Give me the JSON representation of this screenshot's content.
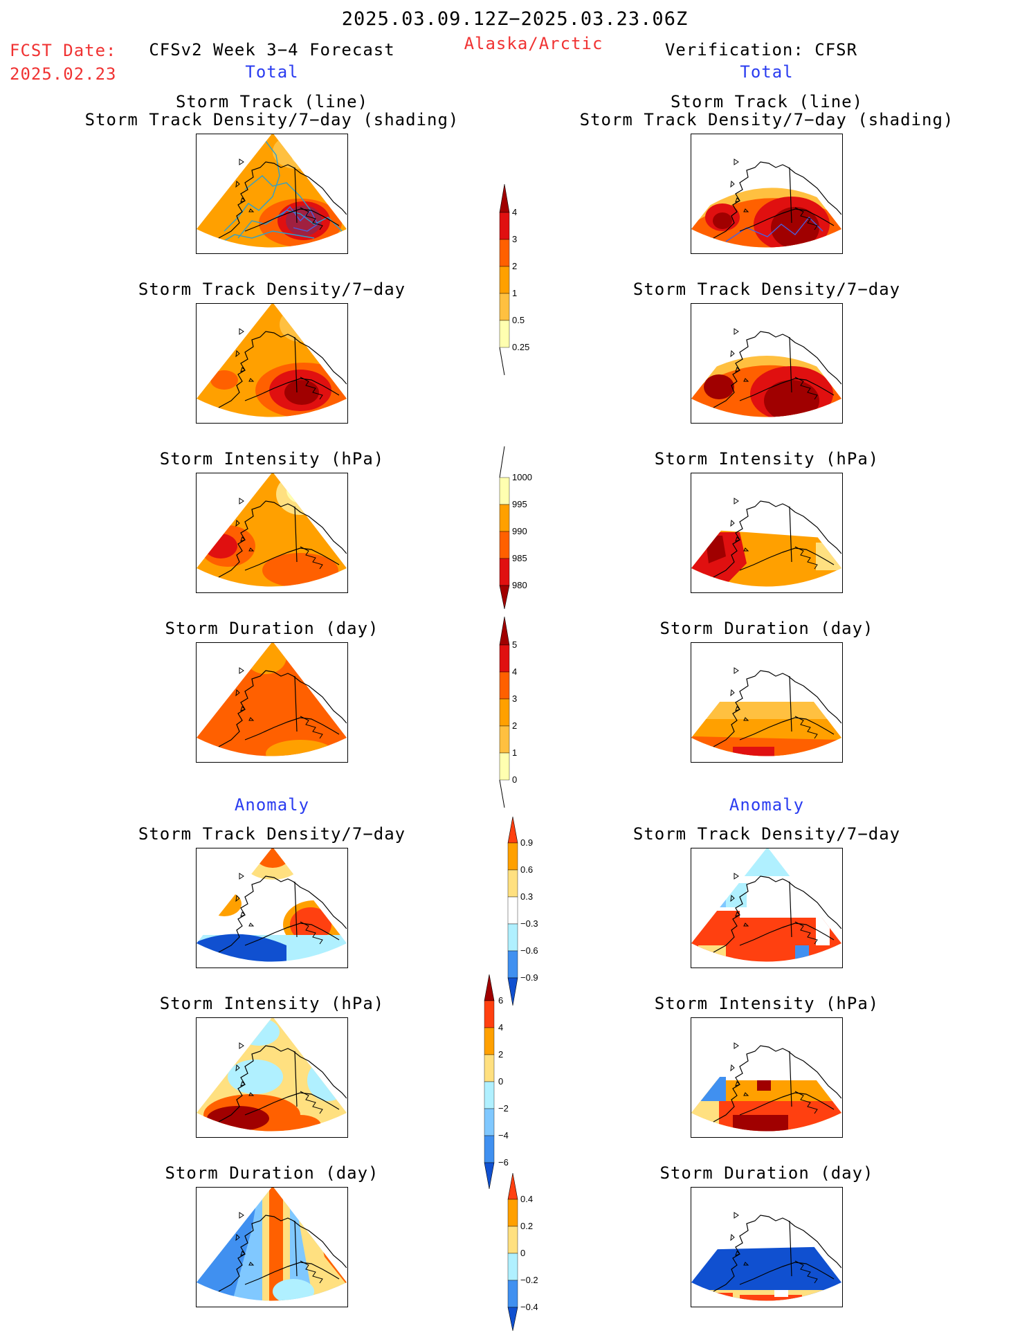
{
  "header": {
    "period": "2025.03.09.12Z−2025.03.23.06Z",
    "fcst_label": "FCST Date:",
    "fcst_date": "2025.02.23",
    "model": "CFSv2 Week 3−4 Forecast",
    "region": "Alaska/Arctic",
    "verification": "Verification: CFSR"
  },
  "sections": {
    "total_left": "Total",
    "total_right": "Total",
    "anomaly_left": "Anomaly",
    "anomaly_right": "Anomaly"
  },
  "panel_titles": {
    "track_line": "Storm Track (line)",
    "track_shading": "Storm Track Density/7−day (shading)",
    "density": "Storm Track Density/7−day",
    "intensity": "Storm Intensity (hPa)",
    "duration": "Storm Duration (day)"
  },
  "colorbars": {
    "density_total": [
      "0.25",
      "0.5",
      "1",
      "2",
      "3",
      "4"
    ],
    "intensity_total": [
      "1000",
      "995",
      "990",
      "985",
      "980"
    ],
    "duration_total": [
      "0",
      "1",
      "2",
      "3",
      "4",
      "5"
    ],
    "density_anom": [
      "0.9",
      "0.6",
      "0.3",
      "−0.3",
      "−0.6",
      "−0.9"
    ],
    "intensity_anom": [
      "6",
      "4",
      "2",
      "0",
      "−2",
      "−4",
      "−6"
    ],
    "duration_anom": [
      "0.4",
      "0.2",
      "0",
      "−0.2",
      "−0.4"
    ]
  },
  "colors": {
    "pale_yellow": "#ffffb0",
    "yellow": "#ffe080",
    "light_orange": "#ffc040",
    "orange": "#ffa000",
    "dark_orange": "#ff6000",
    "red": "#e01010",
    "dark_red": "#a00000",
    "light_blue": "#b0f0ff",
    "sky_blue": "#80c8ff",
    "blue": "#4090f0",
    "dark_blue": "#1050d0",
    "track_line": "#28a0d0"
  }
}
